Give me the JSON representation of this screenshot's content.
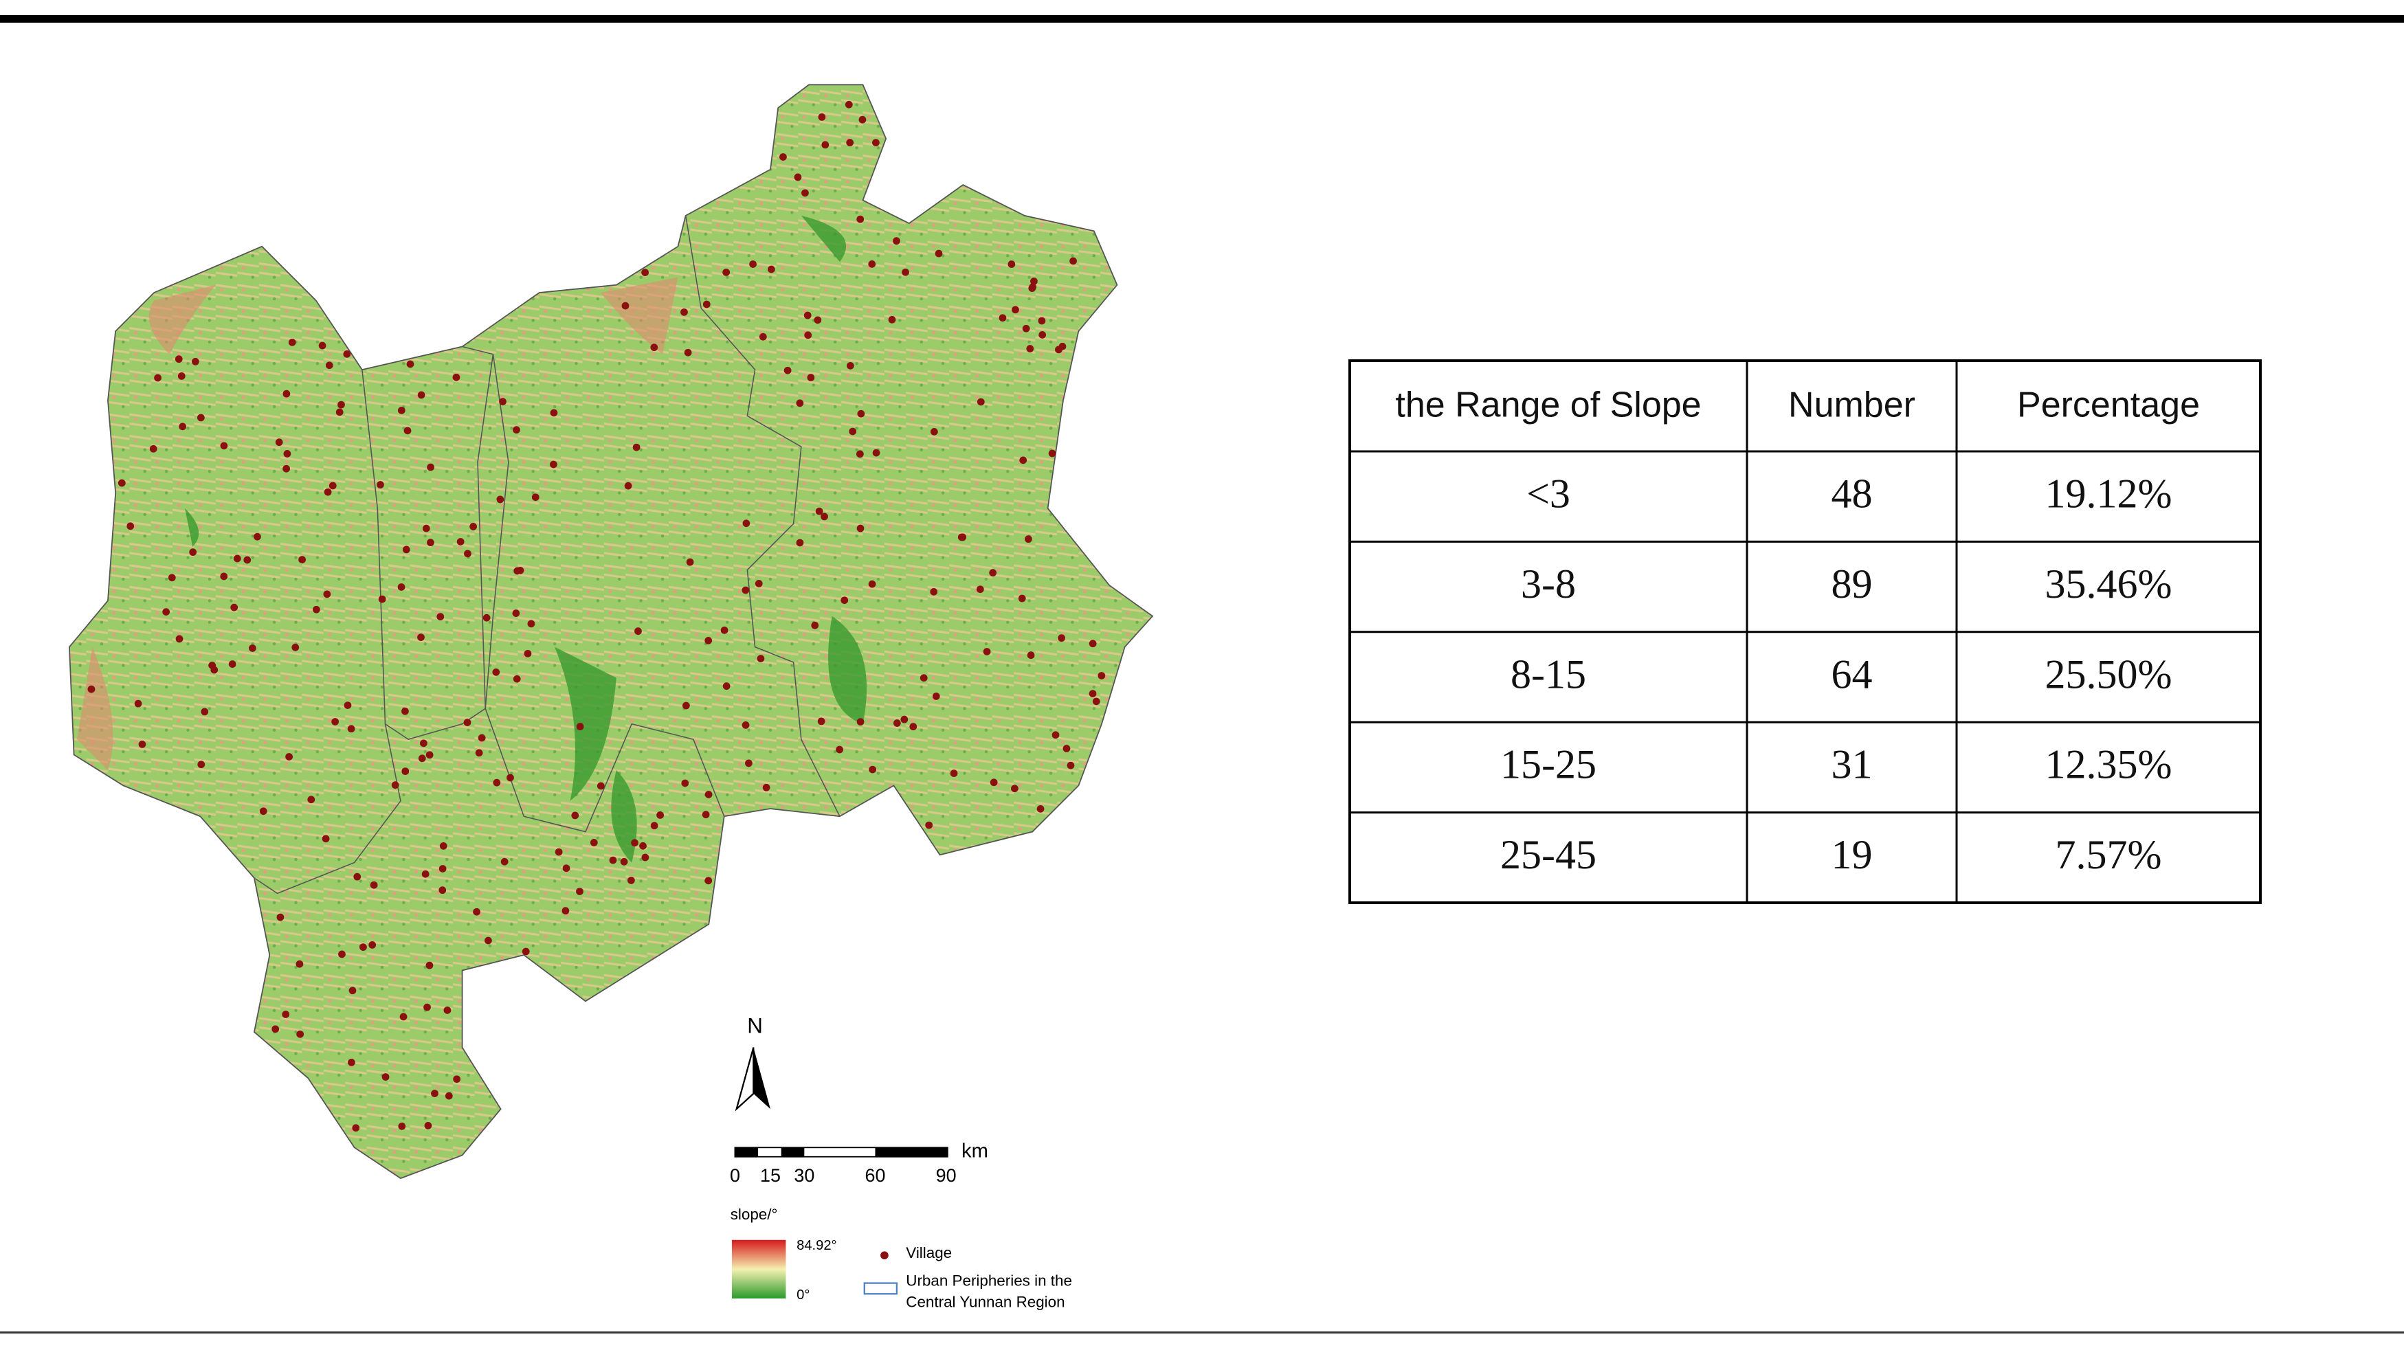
{
  "map": {
    "north": "N",
    "scale_unit": "km",
    "scale_labels": [
      "0",
      "15",
      "30",
      "60",
      "90"
    ],
    "legend": {
      "title": "slope/°",
      "max": "84.92°",
      "min": "0°",
      "village": "Village",
      "boundary": [
        "Urban Peripheries in the",
        "Central Yunnan Region"
      ]
    }
  },
  "table": {
    "header": [
      "the Range of Slope",
      "Number",
      "Percentage"
    ],
    "rows": [
      [
        "<3",
        48,
        "19.12%"
      ],
      [
        "3-8",
        89,
        "35.46%"
      ],
      [
        "8-15",
        64,
        "25.50%"
      ],
      [
        "15-25",
        31,
        "12.35%"
      ],
      [
        "25-45",
        19,
        "7.57%"
      ]
    ]
  }
}
